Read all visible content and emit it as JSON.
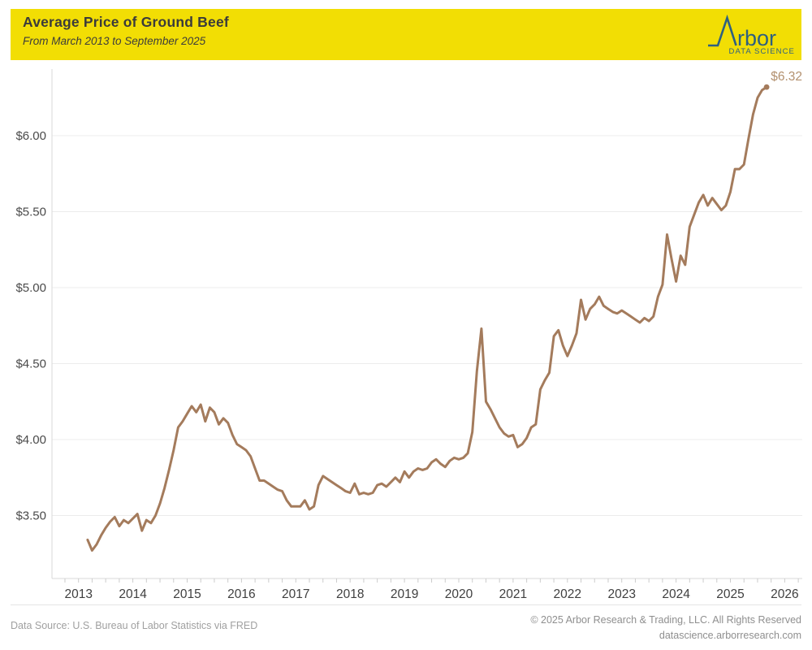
{
  "header": {
    "title": "Average Price of Ground Beef",
    "subtitle": "From March 2013 to September 2025",
    "band_color": "#F2DE04",
    "logo": {
      "brand": "Arbor",
      "brand_text_part": "rbor",
      "tagline": "DATA SCIENCE",
      "color": "#2E6080"
    }
  },
  "chart_data": {
    "type": "line",
    "title": "Average Price of Ground Beef",
    "series_name": "Average price of ground beef, USD per pound",
    "frequency": "monthly",
    "x_start": "2013-03",
    "x_end": "2025-09",
    "values": [
      3.34,
      3.27,
      3.31,
      3.37,
      3.42,
      3.46,
      3.49,
      3.43,
      3.47,
      3.45,
      3.48,
      3.51,
      3.4,
      3.47,
      3.45,
      3.5,
      3.58,
      3.68,
      3.8,
      3.93,
      4.08,
      4.12,
      4.17,
      4.22,
      4.18,
      4.23,
      4.12,
      4.21,
      4.18,
      4.1,
      4.14,
      4.11,
      4.03,
      3.97,
      3.95,
      3.93,
      3.89,
      3.81,
      3.73,
      3.73,
      3.71,
      3.69,
      3.67,
      3.66,
      3.6,
      3.56,
      3.56,
      3.56,
      3.6,
      3.54,
      3.56,
      3.7,
      3.76,
      3.74,
      3.72,
      3.7,
      3.68,
      3.66,
      3.65,
      3.71,
      3.64,
      3.65,
      3.64,
      3.65,
      3.7,
      3.71,
      3.69,
      3.72,
      3.75,
      3.72,
      3.79,
      3.75,
      3.79,
      3.81,
      3.8,
      3.81,
      3.85,
      3.87,
      3.84,
      3.82,
      3.86,
      3.88,
      3.87,
      3.88,
      3.91,
      4.05,
      4.45,
      4.73,
      4.25,
      4.2,
      4.14,
      4.08,
      4.04,
      4.02,
      4.03,
      3.95,
      3.97,
      4.01,
      4.08,
      4.1,
      4.33,
      4.39,
      4.44,
      4.68,
      4.72,
      4.62,
      4.55,
      4.62,
      4.7,
      4.92,
      4.79,
      4.86,
      4.89,
      4.94,
      4.88,
      4.86,
      4.84,
      4.83,
      4.85,
      4.83,
      4.81,
      4.79,
      4.77,
      4.8,
      4.78,
      4.81,
      4.94,
      5.02,
      5.35,
      5.19,
      5.04,
      5.21,
      5.15,
      5.4,
      5.48,
      5.56,
      5.61,
      5.54,
      5.59,
      5.55,
      5.51,
      5.54,
      5.63,
      5.78,
      5.78,
      5.81,
      5.98,
      6.14,
      6.25,
      6.3,
      6.32
    ],
    "end_label": "$6.32",
    "end_value": 6.32,
    "y_ticks": [
      3.5,
      4.0,
      4.5,
      5.0,
      5.5,
      6.0
    ],
    "y_tick_labels": [
      "$3.50",
      "$4.00",
      "$4.50",
      "$5.00",
      "$5.50",
      "$6.00"
    ],
    "x_tick_labels": [
      "2013",
      "2014",
      "2015",
      "2016",
      "2017",
      "2018",
      "2019",
      "2020",
      "2021",
      "2022",
      "2023",
      "2024",
      "2025",
      "2026"
    ],
    "ylim": [
      3.09,
      6.44
    ],
    "grid": "horizontal",
    "legend": "none",
    "colors": {
      "line": "#A47B5C",
      "end_label": "#B3916F",
      "gridline": "#ECECEC",
      "axis": "#D9D9D9",
      "tick": "#CCCCCC",
      "y_label": "#4A4A4A",
      "x_label": "#3F3F3F"
    }
  },
  "footer": {
    "source": "Data Source: U.S. Bureau of Labor Statistics via FRED",
    "copyright": "© 2025 Arbor Research & Trading, LLC. All Rights Reserved",
    "url": "datascience.arborresearch.com"
  }
}
